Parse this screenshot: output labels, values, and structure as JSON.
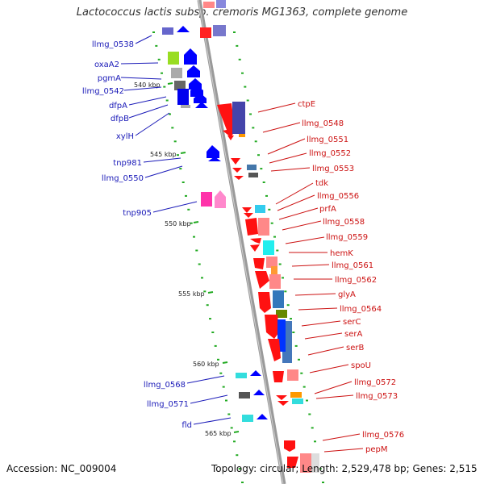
{
  "title": "Lactococcus lactis subsp. cremoris MG1363, complete genome",
  "accession": "Accession: NC_009004",
  "topology": "Topology: circular; Length: 2,529,478 bp; Genes: 2,515",
  "scale_labels": [
    "540 kbp",
    "545 kbp",
    "550 kbp",
    "555 kbp",
    "560 kbp",
    "565 kbp"
  ],
  "left_labels": [
    "llmg_0538",
    "oxaA2",
    "pgmA",
    "llmg_0542",
    "dfpA",
    "dfpB",
    "xylH",
    "tnp981",
    "llmg_0550",
    "tnp905",
    "llmg_0568",
    "llmg_0571",
    "fld"
  ],
  "right_labels": [
    "ctpE",
    "llmg_0548",
    "llmg_0551",
    "llmg_0552",
    "llmg_0553",
    "tdk",
    "llmg_0556",
    "prfA",
    "llmg_0558",
    "llmg_0559",
    "hemK",
    "llmg_0561",
    "llmg_0562",
    "glyA",
    "llmg_0564",
    "serC",
    "serA",
    "serB",
    "spoU",
    "llmg_0572",
    "llmg_0573",
    "llmg_0576",
    "pepM"
  ],
  "colors": {
    "reverse_strand_arrow": "#0000ff",
    "forward_strand_arrow": "#ff0000",
    "left_label": "#1a1ab8",
    "right_label": "#cc1111",
    "backbone": "#999999",
    "tick": "#22aa22"
  }
}
